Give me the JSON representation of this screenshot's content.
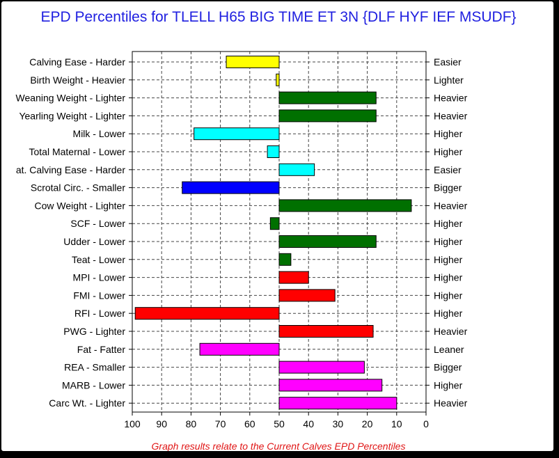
{
  "chart_data": {
    "type": "bar",
    "orientation": "horizontal",
    "title": "EPD Percentiles for TLELL H65 BIG TIME ET 3N {DLF HYF IEF MSUDF}",
    "footnote": "Graph results relate to the Current Calves EPD Percentiles",
    "xlim": [
      100,
      0
    ],
    "xticks": [
      100,
      90,
      80,
      70,
      60,
      50,
      40,
      30,
      20,
      10,
      0
    ],
    "baseline": 50,
    "grid": true,
    "categories": [
      "Calving Ease - Harder",
      "Birth Weight - Heavier",
      "Weaning Weight - Lighter",
      "Yearling Weight - Lighter",
      "Milk - Lower",
      "Total Maternal - Lower",
      "at. Calving Ease - Harder",
      "Scrotal Circ. - Smaller",
      "Cow Weight - Lighter",
      "SCF - Lower",
      "Udder - Lower",
      "Teat - Lower",
      "MPI - Lower",
      "FMI - Lower",
      "RFI - Lower",
      "PWG - Lighter",
      "Fat - Fatter",
      "REA - Smaller",
      "MARB - Lower",
      "Carc Wt. - Lighter"
    ],
    "right_labels": [
      "Easier",
      "Lighter",
      "Heavier",
      "Heavier",
      "Higher",
      "Higher",
      "Easier",
      "Bigger",
      "Heavier",
      "Higher",
      "Higher",
      "Higher",
      "Higher",
      "Higher",
      "Higher",
      "Heavier",
      "Leaner",
      "Bigger",
      "Higher",
      "Heavier"
    ],
    "values": [
      68,
      51,
      17,
      17,
      79,
      54,
      38,
      83,
      5,
      53,
      17,
      46,
      40,
      31,
      99,
      18,
      77,
      21,
      15,
      10
    ],
    "colors": [
      "#ffff00",
      "#ffff00",
      "#007000",
      "#007000",
      "#00ffff",
      "#00ffff",
      "#00ffff",
      "#0000ff",
      "#007000",
      "#007000",
      "#007000",
      "#007000",
      "#ff0000",
      "#ff0000",
      "#ff0000",
      "#ff0000",
      "#ff00ff",
      "#ff00ff",
      "#ff00ff",
      "#ff00ff"
    ]
  }
}
